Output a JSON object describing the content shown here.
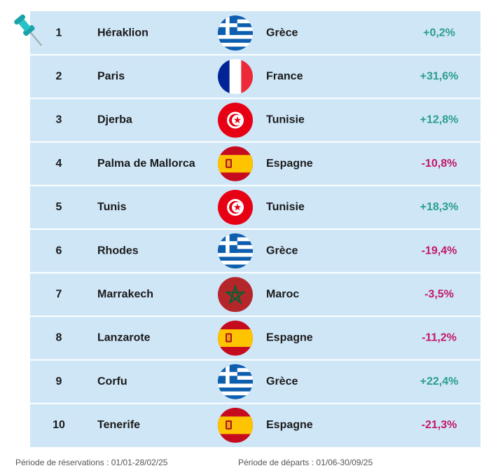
{
  "table": {
    "rows": [
      [
        "1",
        "Héraklion",
        "Grèce",
        "+0,2%"
      ],
      [
        "2",
        "Paris",
        "France",
        "+31,6%"
      ],
      [
        "3",
        "Djerba",
        "Tunisie",
        "+12,8%"
      ],
      [
        "4",
        "Palma de Mallorca",
        "Espagne",
        "-10,8%"
      ],
      [
        "5",
        "Tunis",
        "Tunisie",
        "+18,3%"
      ],
      [
        "6",
        "Rhodes",
        "Grèce",
        "-19,4%"
      ],
      [
        "7",
        "Marrakech",
        "Maroc",
        "-3,5%"
      ],
      [
        "8",
        "Lanzarote",
        "Espagne",
        "-11,2%"
      ],
      [
        "9",
        "Corfu",
        "Grèce",
        "+22,4%"
      ],
      [
        "10",
        "Tenerife",
        "Espagne",
        "-21,3%"
      ]
    ]
  },
  "footer": {
    "left": "Période de réservations : 01/01-28/02/25",
    "right": "Période de départs : 01/06-30/09/25"
  }
}
